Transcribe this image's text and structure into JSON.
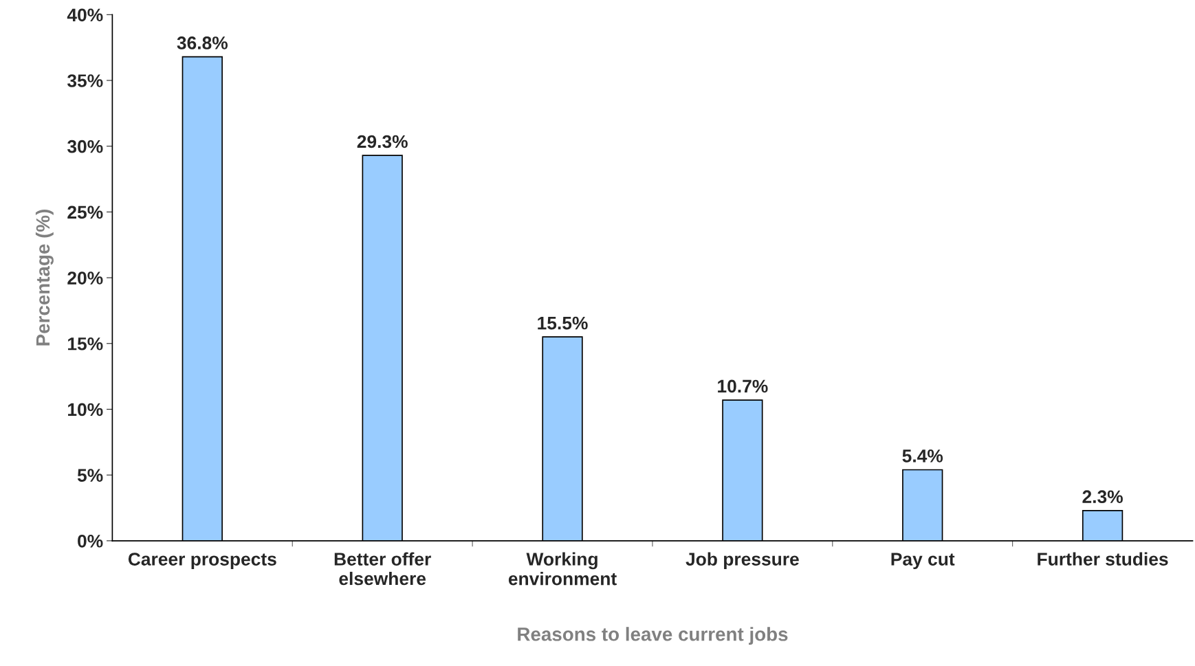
{
  "chart_data": {
    "type": "bar",
    "xlabel": "Reasons to leave current jobs",
    "ylabel": "Percentage (%)",
    "categories": [
      "Career prospects",
      "Better offer\nelsewhere",
      "Working\nenvironment",
      "Job pressure",
      "Pay cut",
      "Further studies"
    ],
    "values": [
      36.8,
      29.3,
      15.5,
      10.7,
      5.4,
      2.3
    ],
    "value_labels": [
      "36.8%",
      "29.3%",
      "15.5%",
      "10.7%",
      "5.4%",
      "2.3%"
    ],
    "color": "#99ccff",
    "ylim": [
      0,
      40
    ],
    "yticks": [
      {
        "value": 0,
        "label": "0%"
      },
      {
        "value": 5,
        "label": "5%"
      },
      {
        "value": 10,
        "label": "10%"
      },
      {
        "value": 15,
        "label": "15%"
      },
      {
        "value": 20,
        "label": "20%"
      },
      {
        "value": 25,
        "label": "25%"
      },
      {
        "value": 30,
        "label": "30%"
      },
      {
        "value": 35,
        "label": "35%"
      },
      {
        "value": 40,
        "label": "40%"
      }
    ],
    "grid": false
  }
}
